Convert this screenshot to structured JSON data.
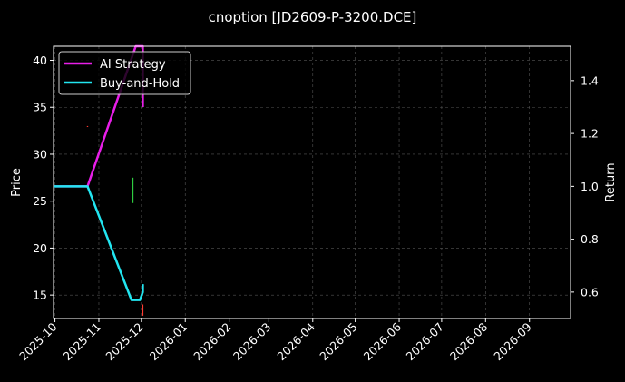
{
  "chart_data": {
    "type": "line",
    "title": "cnoption [JD2609-P-3200.DCE]",
    "ylabel": "Price",
    "y2label": "Return",
    "x_ticks": [
      "2025-10",
      "2025-11",
      "2025-12",
      "2026-01",
      "2026-02",
      "2026-03",
      "2026-04",
      "2026-05",
      "2026-06",
      "2026-07",
      "2026-08",
      "2026-09"
    ],
    "xlim": [
      "2025-09-30",
      "2026-09-30"
    ],
    "ylim": [
      12.5,
      41.5
    ],
    "y_ticks": [
      15,
      20,
      25,
      30,
      35,
      40
    ],
    "y2lim": [
      0.5,
      1.53
    ],
    "y2_ticks": [
      "0.6",
      "0.8",
      "1.0",
      "1.2",
      "1.4"
    ],
    "grid": true,
    "legend_position": "top-left",
    "series": [
      {
        "name": "AI Strategy",
        "axis": "right",
        "color": "#e81ee8",
        "x": [
          "2025-09-30",
          "2025-10-24",
          "2025-11-27",
          "2025-12-02",
          "2025-12-02"
        ],
        "y": [
          1.0,
          1.0,
          1.54,
          1.54,
          1.3
        ]
      },
      {
        "name": "Buy-and-Hold",
        "axis": "right",
        "color": "#22e5f0",
        "x": [
          "2025-09-30",
          "2025-10-24",
          "2025-11-24",
          "2025-11-30",
          "2025-12-02",
          "2025-12-02"
        ],
        "y": [
          1.0,
          1.0,
          0.57,
          0.57,
          0.6,
          0.63
        ]
      }
    ],
    "candles": [
      {
        "x": "2025-10-24",
        "low": 32.9,
        "high": 33.0,
        "color": "#ff3b30"
      },
      {
        "x": "2025-11-25",
        "low": 24.8,
        "high": 27.5,
        "color": "#2ecc40"
      },
      {
        "x": "2025-12-02",
        "low": 12.8,
        "high": 14.0,
        "color": "#ff3b30"
      }
    ]
  }
}
